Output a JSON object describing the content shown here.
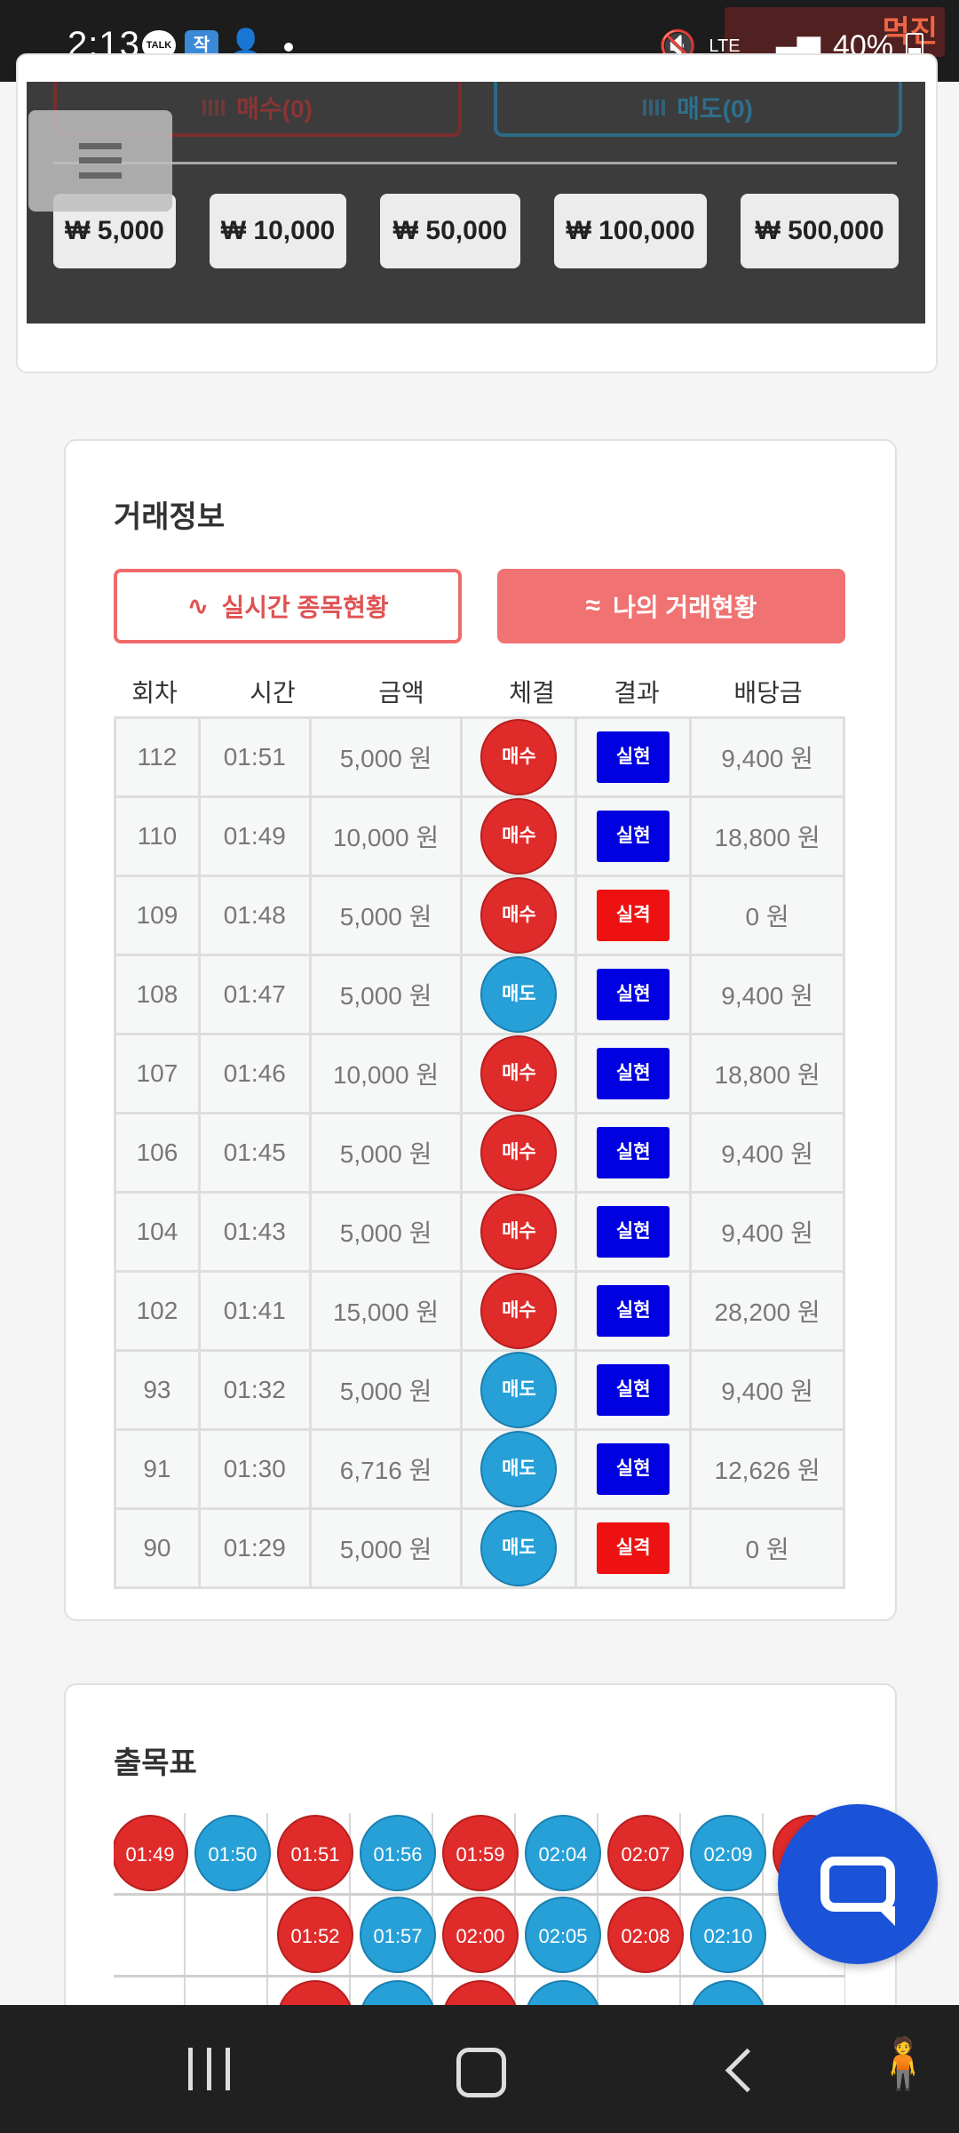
{
  "status_bar": {
    "time": "2:13",
    "talk_icon_label": "TALK",
    "jak_icon_label": "작",
    "network": "LTE",
    "battery": "40%",
    "watermark": "먹진"
  },
  "bet_panel": {
    "buy_label": "매수(0)",
    "sell_label": "매도(0)",
    "amounts": [
      "₩ 5,000",
      "₩ 10,000",
      "₩ 50,000",
      "₩ 100,000",
      "₩ 500,000"
    ]
  },
  "trade_info": {
    "title": "거래정보",
    "tab_live": "실시간 종목현황",
    "tab_mine": "나의 거래현황",
    "columns": [
      "회차",
      "시간",
      "금액",
      "체결",
      "결과",
      "배당금"
    ],
    "rows": [
      {
        "round": "112",
        "time": "01:51",
        "amount": "5,000 원",
        "side": "매수",
        "result": "실현",
        "payout": "9,400 원"
      },
      {
        "round": "110",
        "time": "01:49",
        "amount": "10,000 원",
        "side": "매수",
        "result": "실현",
        "payout": "18,800 원"
      },
      {
        "round": "109",
        "time": "01:48",
        "amount": "5,000 원",
        "side": "매수",
        "result": "실격",
        "payout": "0 원"
      },
      {
        "round": "108",
        "time": "01:47",
        "amount": "5,000 원",
        "side": "매도",
        "result": "실현",
        "payout": "9,400 원"
      },
      {
        "round": "107",
        "time": "01:46",
        "amount": "10,000 원",
        "side": "매수",
        "result": "실현",
        "payout": "18,800 원"
      },
      {
        "round": "106",
        "time": "01:45",
        "amount": "5,000 원",
        "side": "매수",
        "result": "실현",
        "payout": "9,400 원"
      },
      {
        "round": "104",
        "time": "01:43",
        "amount": "5,000 원",
        "side": "매수",
        "result": "실현",
        "payout": "9,400 원"
      },
      {
        "round": "102",
        "time": "01:41",
        "amount": "15,000 원",
        "side": "매수",
        "result": "실현",
        "payout": "28,200 원"
      },
      {
        "round": "93",
        "time": "01:32",
        "amount": "5,000 원",
        "side": "매도",
        "result": "실현",
        "payout": "9,400 원"
      },
      {
        "round": "91",
        "time": "01:30",
        "amount": "6,716 원",
        "side": "매도",
        "result": "실현",
        "payout": "12,626 원"
      },
      {
        "round": "90",
        "time": "01:29",
        "amount": "5,000 원",
        "side": "매도",
        "result": "실격",
        "payout": "0 원"
      }
    ]
  },
  "result_board": {
    "title": "출목표",
    "row1": [
      {
        "time": "01:49",
        "color": "red"
      },
      {
        "time": "01:50",
        "color": "blue"
      },
      {
        "time": "01:51",
        "color": "red"
      },
      {
        "time": "01:56",
        "color": "blue"
      },
      {
        "time": "01:59",
        "color": "red"
      },
      {
        "time": "02:04",
        "color": "blue"
      },
      {
        "time": "02:07",
        "color": "red"
      },
      {
        "time": "02:09",
        "color": "blue"
      },
      {
        "time": "",
        "color": "red"
      }
    ],
    "row2": [
      {
        "time": "01:52",
        "color": "red",
        "col": 2
      },
      {
        "time": "01:57",
        "color": "blue",
        "col": 3
      },
      {
        "time": "02:00",
        "color": "red",
        "col": 4
      },
      {
        "time": "02:05",
        "color": "blue",
        "col": 5
      },
      {
        "time": "02:08",
        "color": "red",
        "col": 6
      },
      {
        "time": "02:10",
        "color": "blue",
        "col": 7
      }
    ]
  },
  "colors": {
    "buy": "#e02b2b",
    "sell": "#27a0d8",
    "win": "#0000e0",
    "lose": "#ee1111",
    "accent": "#f07272"
  }
}
